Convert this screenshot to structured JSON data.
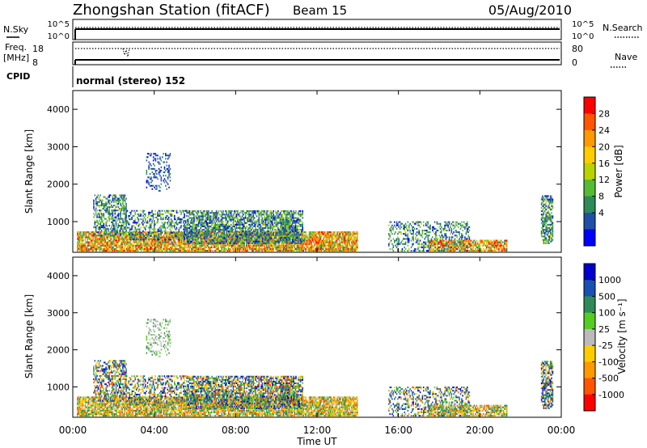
{
  "header": {
    "title": "Zhongshan Station (fitACF)",
    "beam": "Beam 15",
    "date": "05/Aug/2010"
  },
  "noise_panel": {
    "left_label": "N.Sky",
    "left_ticks": [
      "10^5",
      "10^0"
    ],
    "right_label": "N.Search",
    "right_ticks": [
      "10^5",
      "10^0"
    ]
  },
  "freq_panel": {
    "left_label_line1": "Freq.",
    "left_label_line2": "[MHz]",
    "left_ticks": [
      "18",
      "8"
    ],
    "right_label": "Nave",
    "right_ticks": [
      "80",
      "0"
    ],
    "cpid_label": "CPID"
  },
  "cpid_text": "normal (stereo) 152",
  "chart_data": [
    {
      "type": "heatmap",
      "name": "power",
      "ylabel": "Slant Range [km]",
      "ylim": [
        180,
        4500
      ],
      "y_ticks": [
        1000,
        2000,
        3000,
        4000
      ],
      "colorbar_label": "Power [dB]",
      "colorbar_ticks": [
        "28",
        "24",
        "20",
        "16",
        "12",
        "8",
        "4"
      ],
      "colorbar_colors": [
        "#ff0000",
        "#ff5500",
        "#ff9900",
        "#ffcc00",
        "#b8d300",
        "#55bb33",
        "#2e8b57",
        "#1f4fa8",
        "#0000ff"
      ]
    },
    {
      "type": "heatmap",
      "name": "velocity",
      "ylabel": "Slant Range [km]",
      "ylim": [
        180,
        4500
      ],
      "y_ticks": [
        1000,
        2000,
        3000,
        4000
      ],
      "colorbar_label": "Velocity [m s⁻¹]",
      "colorbar_ticks": [
        "1000",
        "500",
        "100",
        "25",
        "-25",
        "-100",
        "-500",
        "-1000"
      ],
      "colorbar_colors": [
        "#0000cc",
        "#1a4fb3",
        "#2e8b57",
        "#55cc22",
        "#bbbbbb",
        "#ffcc00",
        "#ff9900",
        "#ff5500",
        "#ff0000"
      ]
    }
  ],
  "x_axis": {
    "ticks": [
      "00:00",
      "04:00",
      "08:00",
      "12:00",
      "16:00",
      "20:00",
      "00:00"
    ],
    "label": "Time UT",
    "range_hours": [
      0,
      24
    ]
  },
  "scatter_regions": [
    {
      "t0": 0.2,
      "t1": 14.0,
      "r0": 200,
      "r1": 700,
      "density": 0.85,
      "band": "low"
    },
    {
      "t0": 1.0,
      "t1": 2.6,
      "r0": 600,
      "r1": 1700,
      "density": 0.55,
      "band": "mid"
    },
    {
      "t0": 2.6,
      "t1": 5.6,
      "r0": 500,
      "r1": 1300,
      "density": 0.45,
      "band": "mid"
    },
    {
      "t0": 5.6,
      "t1": 11.3,
      "r0": 400,
      "r1": 1300,
      "density": 0.7,
      "band": "mid"
    },
    {
      "t0": 3.6,
      "t1": 4.8,
      "r0": 1800,
      "r1": 2800,
      "density": 0.25,
      "band": "high"
    },
    {
      "t0": 10.2,
      "t1": 11.0,
      "r0": 500,
      "r1": 1000,
      "density": 0.6,
      "band": "mid"
    },
    {
      "t0": 15.5,
      "t1": 19.5,
      "r0": 200,
      "r1": 1000,
      "density": 0.4,
      "band": "mid"
    },
    {
      "t0": 17.5,
      "t1": 21.3,
      "r0": 200,
      "r1": 500,
      "density": 0.7,
      "band": "low"
    },
    {
      "t0": 23.0,
      "t1": 23.6,
      "r0": 400,
      "r1": 1700,
      "density": 0.65,
      "band": "mid"
    }
  ],
  "colors": {
    "axis": "#000000",
    "background": "#ffffff"
  }
}
